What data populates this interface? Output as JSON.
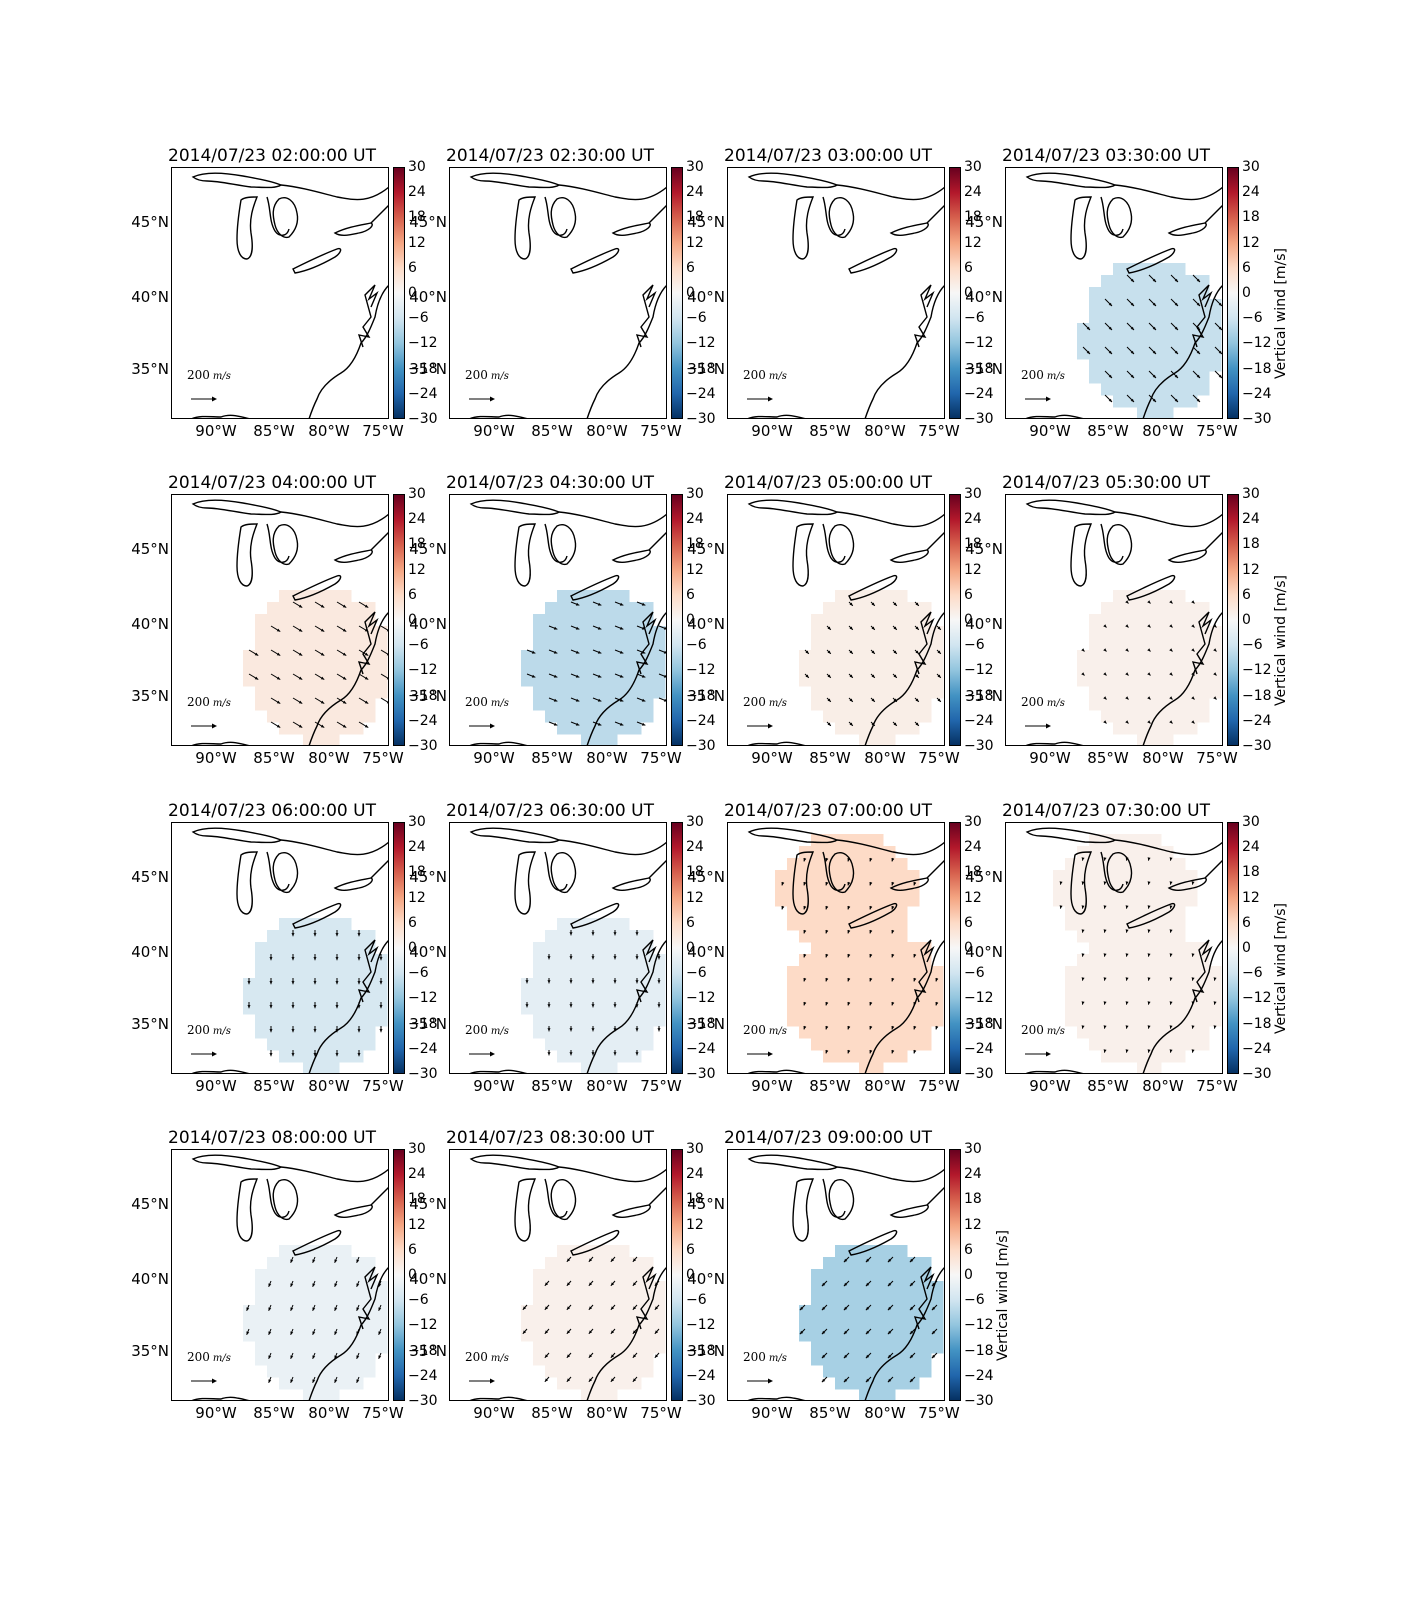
{
  "figure": {
    "colorbar": {
      "ticks": [
        "30",
        "24",
        "18",
        "12",
        "6",
        "0",
        "−6",
        "−12",
        "−18",
        "−24",
        "−30"
      ],
      "label": "Vertical wind [m/s]",
      "range": [
        -30,
        30
      ],
      "colormap": "RdBu_r",
      "colors_top_to_bottom": [
        "#67001f",
        "#b2182b",
        "#d6604d",
        "#f4a582",
        "#fddbc7",
        "#f7f7f7",
        "#d1e5f0",
        "#92c5de",
        "#4393c3",
        "#2166ac",
        "#053061"
      ]
    },
    "axes": {
      "lat_ticks": [
        "45°N",
        "40°N",
        "35°N"
      ],
      "lon_ticks": [
        "90°W",
        "85°W",
        "80°W",
        "75°W"
      ]
    },
    "reference_vector": {
      "magnitude": "200",
      "unit": "m/s"
    },
    "panels": [
      {
        "title": "2014/07/23 02:00:00 UT",
        "vertical_wind": null,
        "region": "none",
        "arrow_dir": null,
        "arrow_len": 0
      },
      {
        "title": "2014/07/23 02:30:00 UT",
        "vertical_wind": null,
        "region": "none",
        "arrow_dir": null,
        "arrow_len": 0
      },
      {
        "title": "2014/07/23 03:00:00 UT",
        "vertical_wind": null,
        "region": "none",
        "arrow_dir": null,
        "arrow_len": 0
      },
      {
        "title": "2014/07/23 03:30:00 UT",
        "vertical_wind": -7,
        "region": "south",
        "arrow_dir": [
          1,
          1
        ],
        "arrow_len": 0.55
      },
      {
        "title": "2014/07/23 04:00:00 UT",
        "vertical_wind": 3,
        "region": "south",
        "arrow_dir": [
          1,
          0.6
        ],
        "arrow_len": 0.6
      },
      {
        "title": "2014/07/23 04:30:00 UT",
        "vertical_wind": -8,
        "region": "south",
        "arrow_dir": [
          1,
          0.4
        ],
        "arrow_len": 0.5
      },
      {
        "title": "2014/07/23 05:00:00 UT",
        "vertical_wind": 2,
        "region": "south",
        "arrow_dir": [
          0.6,
          0.6
        ],
        "arrow_len": 0.3
      },
      {
        "title": "2014/07/23 05:30:00 UT",
        "vertical_wind": 1.5,
        "region": "south",
        "arrow_dir": [
          0.2,
          0.2
        ],
        "arrow_len": 0.12
      },
      {
        "title": "2014/07/23 06:00:00 UT",
        "vertical_wind": -5,
        "region": "south",
        "arrow_dir": [
          0,
          1
        ],
        "arrow_len": 0.35
      },
      {
        "title": "2014/07/23 06:30:00 UT",
        "vertical_wind": -3,
        "region": "south",
        "arrow_dir": [
          0,
          1
        ],
        "arrow_len": 0.3
      },
      {
        "title": "2014/07/23 07:00:00 UT",
        "vertical_wind": 6,
        "region": "large",
        "arrow_dir": [
          -0.3,
          1
        ],
        "arrow_len": 0.2
      },
      {
        "title": "2014/07/23 07:30:00 UT",
        "vertical_wind": 1.5,
        "region": "large",
        "arrow_dir": [
          -0.2,
          1
        ],
        "arrow_len": 0.15
      },
      {
        "title": "2014/07/23 08:00:00 UT",
        "vertical_wind": -2,
        "region": "south",
        "arrow_dir": [
          -0.4,
          1
        ],
        "arrow_len": 0.35
      },
      {
        "title": "2014/07/23 08:30:00 UT",
        "vertical_wind": 1.5,
        "region": "south",
        "arrow_dir": [
          -0.7,
          0.8
        ],
        "arrow_len": 0.35
      },
      {
        "title": "2014/07/23 09:00:00 UT",
        "vertical_wind": -10,
        "region": "south",
        "arrow_dir": [
          -0.8,
          0.8
        ],
        "arrow_len": 0.4
      }
    ]
  }
}
